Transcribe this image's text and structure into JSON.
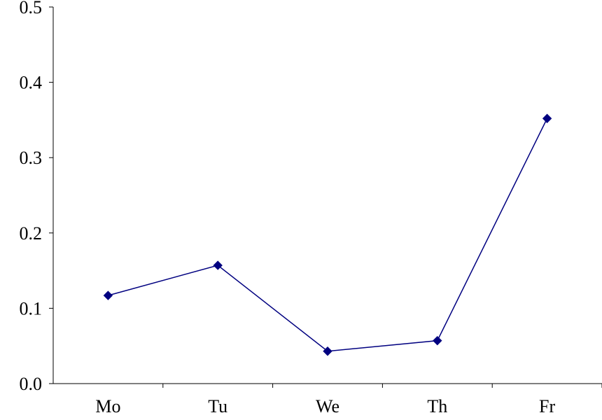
{
  "chart_data": {
    "type": "line",
    "title": "",
    "xlabel": "",
    "ylabel": "",
    "categories": [
      "Mo",
      "Tu",
      "We",
      "Th",
      "Fr"
    ],
    "series": [
      {
        "values": [
          0.117,
          0.157,
          0.043,
          0.057,
          0.352
        ]
      }
    ],
    "ylim": [
      0,
      0.5
    ],
    "yticks": [
      "0.0",
      "0.1",
      "0.2",
      "0.3",
      "0.4",
      "0.5"
    ],
    "grid": false,
    "legend": "none",
    "marker": "diamond",
    "colors": {
      "series": "#000080",
      "axis": "#000000",
      "background": "#ffffff"
    }
  }
}
